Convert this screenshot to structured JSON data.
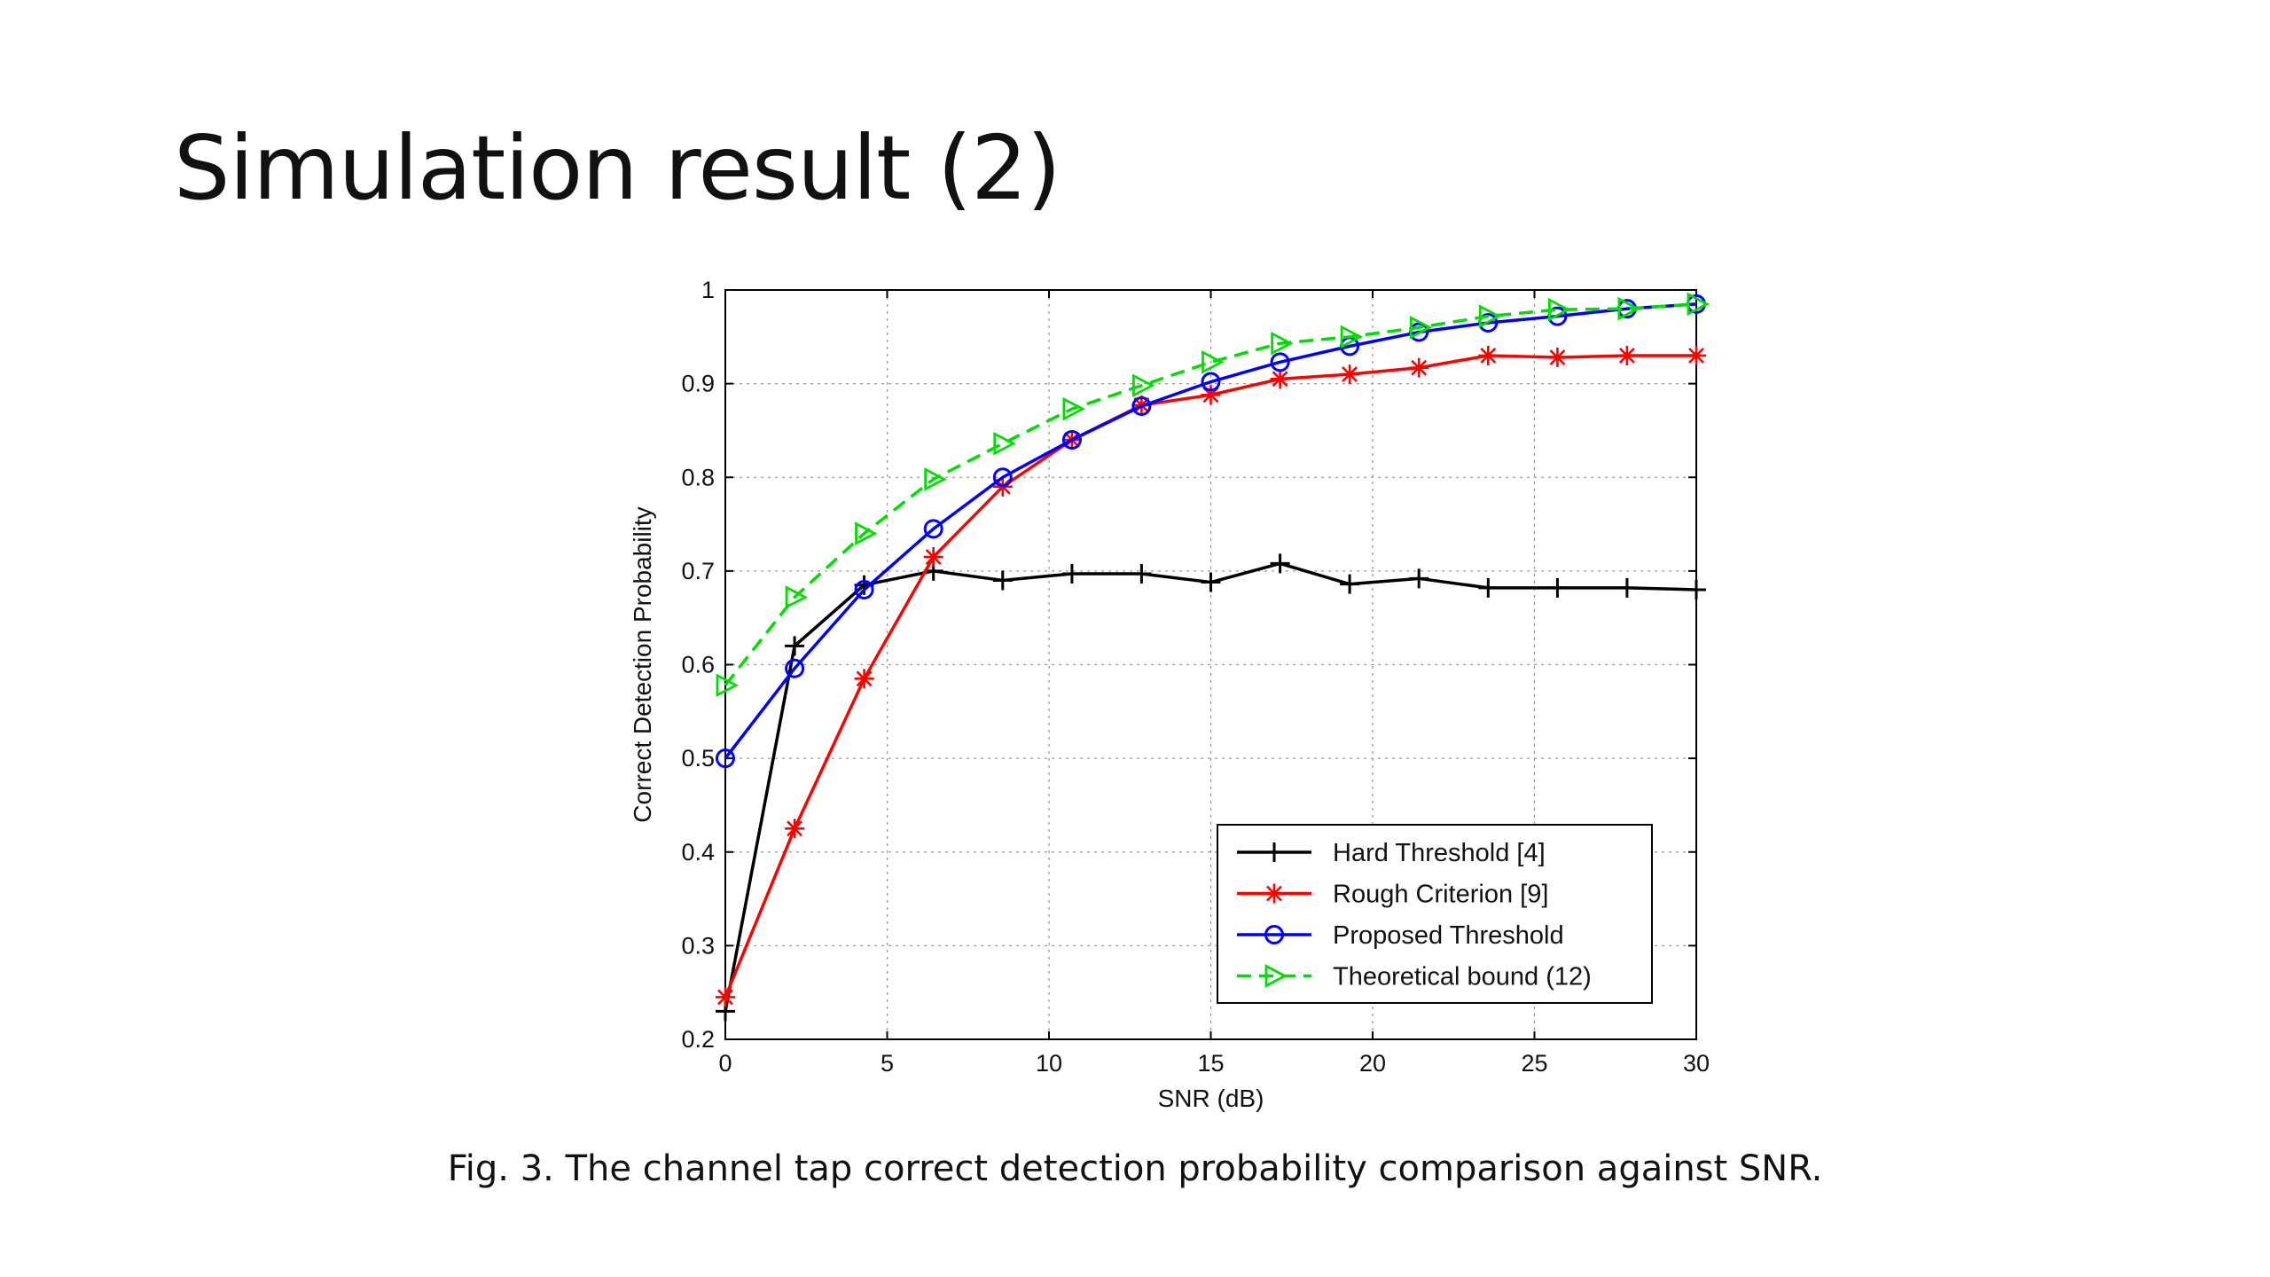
{
  "slide": {
    "title": "Simulation result (2)",
    "caption": "Fig. 3. The channel tap correct detection probability comparison against SNR."
  },
  "chart_data": {
    "type": "line",
    "xlabel": "SNR (dB)",
    "ylabel": "Correct Detection Probability",
    "xlim": [
      0,
      30
    ],
    "ylim": [
      0.2,
      1
    ],
    "x_ticks": [
      0,
      5,
      10,
      15,
      20,
      25,
      30
    ],
    "y_ticks": [
      0.2,
      0.3,
      0.4,
      0.5,
      0.6,
      0.7,
      0.8,
      0.9,
      1
    ],
    "grid": true,
    "legend_position": "bottom-right",
    "x": [
      0,
      2.14,
      4.29,
      6.43,
      8.57,
      10.71,
      12.86,
      15.0,
      17.14,
      19.29,
      21.43,
      23.57,
      25.71,
      27.86,
      30.0
    ],
    "series": [
      {
        "name": "Hard Threshold [4]",
        "color": "#000000",
        "marker": "plus",
        "line_style": "solid",
        "values": [
          0.23,
          0.62,
          0.685,
          0.7,
          0.69,
          0.697,
          0.697,
          0.688,
          0.708,
          0.686,
          0.692,
          0.682,
          0.682,
          0.682,
          0.68
        ]
      },
      {
        "name": "Rough Criterion [9]",
        "color": "#ff0000",
        "marker": "asterisk",
        "line_style": "solid",
        "values": [
          0.245,
          0.425,
          0.585,
          0.715,
          0.79,
          0.84,
          0.877,
          0.888,
          0.905,
          0.91,
          0.917,
          0.93,
          0.928,
          0.93,
          0.93
        ]
      },
      {
        "name": "Proposed Threshold",
        "color": "#0000ff",
        "marker": "circle",
        "line_style": "solid",
        "values": [
          0.5,
          0.596,
          0.68,
          0.745,
          0.8,
          0.84,
          0.876,
          0.902,
          0.923,
          0.94,
          0.955,
          0.965,
          0.972,
          0.98,
          0.985
        ]
      },
      {
        "name": "Theoretical bound (12)",
        "color": "#00dd00",
        "marker": "triangle-right",
        "line_style": "dashed",
        "values": [
          0.578,
          0.672,
          0.74,
          0.798,
          0.836,
          0.873,
          0.898,
          0.923,
          0.943,
          0.95,
          0.96,
          0.972,
          0.979,
          0.98,
          0.985
        ]
      }
    ]
  }
}
